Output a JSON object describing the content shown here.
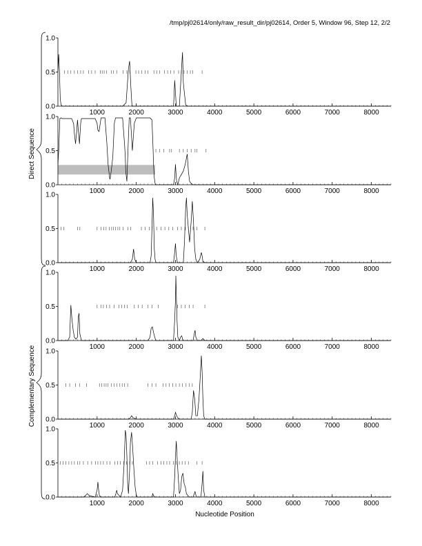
{
  "title": "/tmp/pj02614/only/raw_result_dir/pj02614, Order 5, Window 96, Step 12, 2/2",
  "xlabel": "Nucleotide Position",
  "group_labels": [
    "Direct Sequence",
    "Complementary Sequence"
  ],
  "chart_data": [
    {
      "type": "line",
      "name": "",
      "xlim": [
        0,
        8500
      ],
      "ylim": [
        0,
        1
      ],
      "x_ticks": [
        1000,
        2000,
        3000,
        4000,
        5000,
        6000,
        7000,
        8000
      ],
      "x_tick_labels": [
        "1000",
        "2000",
        "3000",
        "4000",
        "5000",
        "6000",
        "7000",
        "8000"
      ],
      "y_ticks": [
        0,
        0.5,
        1
      ],
      "y_tick_labels": [
        "0.0",
        "0.5",
        "1.0"
      ],
      "series": [
        {
          "x": [
            0,
            20,
            40,
            60,
            80,
            100,
            1650,
            1740,
            1770,
            1800,
            1830,
            1860,
            1890,
            2950,
            2960,
            2980,
            3000,
            3020,
            3100,
            3130,
            3160,
            3180,
            3200,
            3230,
            3260,
            3300,
            8500
          ],
          "y": [
            0.5,
            0.76,
            0.5,
            0.1,
            0.02,
            0,
            0,
            0.05,
            0.3,
            0.55,
            0.66,
            0.3,
            0,
            0,
            0.1,
            0.38,
            0.2,
            0,
            0,
            0.3,
            0.6,
            0.79,
            0.35,
            0.18,
            0.02,
            0,
            0
          ]
        }
      ],
      "stop_codons": [
        170,
        250,
        330,
        420,
        500,
        580,
        650,
        780,
        860,
        950,
        1080,
        1130,
        1180,
        1240,
        1360,
        1420,
        1500,
        1660,
        1760,
        1840,
        1990,
        2060,
        2140,
        2230,
        2300,
        2450,
        2520,
        2600,
        2720,
        2800,
        2880,
        2960,
        3080,
        3150,
        3220,
        3300,
        3380,
        3440,
        3680
      ]
    },
    {
      "type": "line",
      "name": "",
      "xlim": [
        0,
        8500
      ],
      "ylim": [
        0,
        1
      ],
      "x_ticks": [
        1000,
        2000,
        3000,
        4000,
        5000,
        6000,
        7000,
        8000
      ],
      "x_tick_labels": [
        "1000",
        "2000",
        "3000",
        "4000",
        "5000",
        "6000",
        "7000",
        "8000"
      ],
      "y_ticks": [
        0,
        0.5,
        1
      ],
      "y_tick_labels": [
        "0.0",
        "0.5",
        "1.0"
      ],
      "highlight": {
        "x": [
          0,
          2480
        ],
        "y": [
          0.15,
          0.29
        ]
      },
      "series": [
        {
          "x": [
            0,
            20,
            50,
            80,
            100,
            200,
            350,
            400,
            420,
            450,
            480,
            500,
            520,
            550,
            580,
            600,
            800,
            950,
            1000,
            1020,
            1050,
            1080,
            1100,
            1150,
            1200,
            1250,
            1280,
            1320,
            1330,
            1360,
            1400,
            1440,
            1470,
            1500,
            1550,
            1600,
            1650,
            1700,
            1720,
            1730,
            1760,
            1800,
            1820,
            1850,
            1880,
            1900,
            1950,
            2000,
            2150,
            2350,
            2400,
            2430,
            2440,
            2460,
            2480,
            2500,
            2950,
            2980,
            3000,
            3010,
            3030,
            3060,
            3080,
            3100,
            3150,
            3200,
            3250,
            3300,
            3330,
            3360,
            3400,
            3450,
            8500
          ],
          "y": [
            0.3,
            0.5,
            0.97,
            0.98,
            0.97,
            0.97,
            0.97,
            0.9,
            0.75,
            0.6,
            0.8,
            0.95,
            0.8,
            0.6,
            0.9,
            0.97,
            0.97,
            0.97,
            0.9,
            0.8,
            0.78,
            0.9,
            0.98,
            0.98,
            0.98,
            0.6,
            0.3,
            0.1,
            0.08,
            0.2,
            0.4,
            0.9,
            0.98,
            0.98,
            0.98,
            0.98,
            0.98,
            0.6,
            0.4,
            0.2,
            0.05,
            0.7,
            0.98,
            0.98,
            0.7,
            0.5,
            0.9,
            0.98,
            0.98,
            0.98,
            0.95,
            0.5,
            0.3,
            0.1,
            0.02,
            0,
            0,
            0.1,
            0.3,
            0.2,
            0.05,
            0,
            0.05,
            0.1,
            0.15,
            0.2,
            0.3,
            0.45,
            0.2,
            0.05,
            0.02,
            0,
            0
          ]
        }
      ],
      "stop_codons": [
        2500,
        2600,
        2700,
        2850,
        2900,
        3100,
        3200,
        3300,
        3400,
        3500,
        3550,
        3780
      ]
    },
    {
      "type": "line",
      "name": "",
      "xlim": [
        0,
        8500
      ],
      "ylim": [
        0,
        1
      ],
      "x_ticks": [
        1000,
        2000,
        3000,
        4000,
        5000,
        6000,
        7000,
        8000
      ],
      "x_tick_labels": [
        "1000",
        "2000",
        "3000",
        "4000",
        "5000",
        "6000",
        "7000",
        "8000"
      ],
      "y_ticks": [
        0,
        0.5,
        1
      ],
      "y_tick_labels": [
        "0.0",
        "0.5",
        "1.0"
      ],
      "series": [
        {
          "x": [
            0,
            1850,
            1900,
            1930,
            1960,
            2000,
            2350,
            2380,
            2400,
            2420,
            2440,
            2460,
            2480,
            2500,
            2950,
            2980,
            3000,
            3020,
            3050,
            3200,
            3230,
            3260,
            3280,
            3300,
            3330,
            3360,
            3400,
            3430,
            3460,
            3490,
            3520,
            3560,
            3620,
            3660,
            3680,
            3700,
            3750,
            8500
          ],
          "y": [
            0,
            0,
            0.05,
            0.2,
            0.05,
            0,
            0,
            0.1,
            0.5,
            0.95,
            0.7,
            0.2,
            0.05,
            0,
            0,
            0.15,
            0.28,
            0.1,
            0,
            0,
            0.3,
            0.8,
            0.95,
            0.7,
            0.5,
            0.3,
            0.6,
            0.9,
            0.6,
            0.2,
            0.05,
            0,
            0.05,
            0.15,
            0.1,
            0.02,
            0,
            0
          ]
        }
      ],
      "stop_codons": [
        80,
        150,
        500,
        560,
        1000,
        1100,
        1170,
        1230,
        1310,
        1370,
        1420,
        1470,
        1530,
        1580,
        1660,
        1790,
        1860,
        2130,
        2230,
        2330,
        2400,
        2520,
        2630,
        2730,
        2830,
        2930,
        3050,
        3150,
        3250,
        3330,
        3450,
        3550,
        3750
      ]
    },
    {
      "type": "line",
      "name": "",
      "xlim": [
        0,
        8500
      ],
      "ylim": [
        0,
        1
      ],
      "x_ticks": [
        1000,
        2000,
        3000,
        4000,
        5000,
        6000,
        7000,
        8000
      ],
      "x_tick_labels": [
        "1000",
        "2000",
        "3000",
        "4000",
        "5000",
        "6000",
        "7000",
        "8000"
      ],
      "y_ticks": [
        0,
        0.5,
        1
      ],
      "y_tick_labels": [
        "0.0",
        "0.5",
        "1.0"
      ],
      "series": [
        {
          "x": [
            0,
            250,
            300,
            330,
            360,
            390,
            420,
            460,
            500,
            520,
            540,
            560,
            600,
            2300,
            2350,
            2380,
            2410,
            2440,
            2470,
            2500,
            2950,
            2980,
            3000,
            3010,
            3020,
            3040,
            3060,
            3100,
            3130,
            3160,
            3190,
            3450,
            3480,
            3500,
            3520,
            3560,
            3650,
            3700,
            3750,
            8500
          ],
          "y": [
            0,
            0,
            0.05,
            0.52,
            0.3,
            0.15,
            0.05,
            0.02,
            0.05,
            0.35,
            0.4,
            0.1,
            0,
            0,
            0.05,
            0.18,
            0.2,
            0.12,
            0.05,
            0,
            0,
            0.3,
            0.6,
            0.95,
            0.7,
            0.3,
            0.05,
            0,
            0.05,
            0.07,
            0,
            0,
            0.1,
            0.15,
            0.05,
            0,
            0,
            0.03,
            0,
            0
          ]
        }
      ],
      "stop_codons": [
        1000,
        1100,
        1160,
        1240,
        1320,
        1430,
        1560,
        1630,
        1700,
        1770,
        1950,
        2050,
        2150,
        2300,
        2400,
        2560,
        3050,
        3150,
        3250,
        3350,
        3450,
        3750
      ]
    },
    {
      "type": "line",
      "name": "",
      "xlim": [
        0,
        8500
      ],
      "ylim": [
        0,
        1
      ],
      "x_ticks": [
        1000,
        2000,
        3000,
        4000,
        5000,
        6000,
        7000,
        8000
      ],
      "x_tick_labels": [
        "1000",
        "2000",
        "3000",
        "4000",
        "5000",
        "6000",
        "7000",
        "8000"
      ],
      "y_ticks": [
        0,
        0.5,
        1
      ],
      "y_tick_labels": [
        "0.0",
        "0.5",
        "1.0"
      ],
      "series": [
        {
          "x": [
            0,
            1800,
            1850,
            1880,
            1920,
            2000,
            2950,
            2980,
            3000,
            3030,
            3060,
            3100,
            3400,
            3430,
            3460,
            3490,
            3520,
            3560,
            3600,
            3630,
            3660,
            3680,
            3700,
            3720,
            3750,
            8500
          ],
          "y": [
            0,
            0,
            0.02,
            0.05,
            0.02,
            0,
            0,
            0.05,
            0.1,
            0.05,
            0.02,
            0,
            0,
            0.1,
            0.42,
            0.3,
            0.05,
            0.05,
            0.3,
            0.6,
            0.93,
            0.7,
            0.3,
            0.05,
            0,
            0
          ]
        }
      ],
      "stop_codons": [
        200,
        300,
        450,
        550,
        730,
        1060,
        1120,
        1180,
        1230,
        1280,
        1360,
        1430,
        1500,
        1580,
        1640,
        1700,
        1780,
        2300,
        2400,
        2500,
        2680,
        2760,
        2840,
        2930,
        3010,
        3100,
        3180,
        3270,
        3350,
        3430
      ]
    },
    {
      "type": "line",
      "name": "",
      "xlim": [
        0,
        8500
      ],
      "ylim": [
        0,
        1
      ],
      "x_ticks": [
        1000,
        2000,
        3000,
        4000,
        5000,
        6000,
        7000,
        8000
      ],
      "x_tick_labels": [
        "1000",
        "2000",
        "3000",
        "4000",
        "5000",
        "6000",
        "7000",
        "8000"
      ],
      "y_ticks": [
        0,
        0.5,
        1
      ],
      "y_tick_labels": [
        "0.0",
        "0.5",
        "1.0"
      ],
      "series": [
        {
          "x": [
            0,
            650,
            700,
            750,
            800,
            950,
            1000,
            1020,
            1040,
            1060,
            1100,
            1450,
            1480,
            1500,
            1520,
            1600,
            1650,
            1690,
            1720,
            1740,
            1760,
            1780,
            1800,
            1830,
            1850,
            1880,
            1910,
            1940,
            1970,
            2000,
            2030,
            2100,
            2400,
            2420,
            2440,
            2470,
            2950,
            2980,
            3000,
            3020,
            3040,
            3070,
            3100,
            3130,
            3160,
            3190,
            3220,
            3250,
            3280,
            3320,
            3360,
            3450,
            3480,
            3500,
            3520,
            3550,
            3650,
            3680,
            3700,
            3720,
            3750,
            8500
          ],
          "y": [
            0,
            0,
            0.02,
            0.05,
            0.02,
            0,
            0.1,
            0.22,
            0.1,
            0.02,
            0,
            0,
            0.05,
            0.1,
            0.05,
            0,
            0.1,
            0.5,
            0.98,
            0.9,
            0.6,
            0.2,
            0.05,
            0.4,
            0.8,
            0.95,
            0.7,
            0.4,
            0.15,
            0.03,
            0,
            0,
            0,
            0.05,
            0.02,
            0,
            0,
            0.3,
            0.6,
            0.82,
            0.6,
            0.3,
            0.05,
            0.1,
            0.3,
            0.35,
            0.2,
            0.15,
            0.05,
            0.02,
            0,
            0,
            0.05,
            0.08,
            0.03,
            0,
            0,
            0.2,
            0.38,
            0.1,
            0,
            0
          ]
        }
      ],
      "stop_codons": [
        60,
        130,
        200,
        280,
        350,
        420,
        500,
        560,
        650,
        760,
        860,
        960,
        1020,
        1090,
        1160,
        1250,
        1330,
        1450,
        1520,
        1590,
        1680,
        1750,
        1830,
        1900,
        2260,
        2340,
        2420,
        2540,
        2630,
        2700,
        2780,
        2850,
        2950,
        3020,
        3100,
        3170,
        3250,
        3330,
        3550,
        3680
      ]
    }
  ]
}
